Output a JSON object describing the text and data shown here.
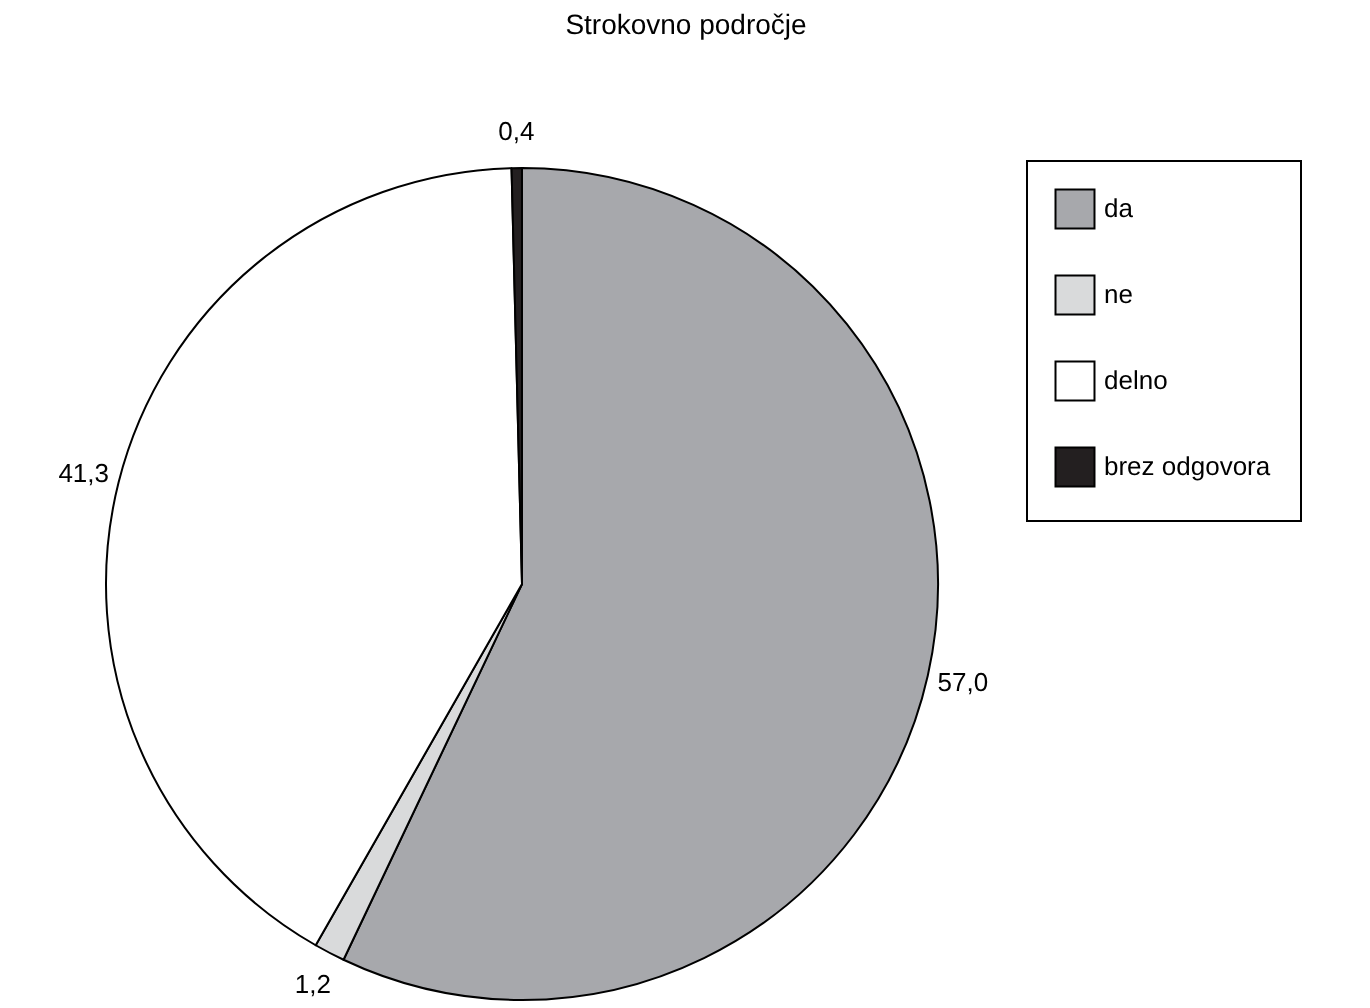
{
  "chart_data": {
    "type": "pie",
    "title": "Strokovno področje",
    "categories": [
      "da",
      "ne",
      "delno",
      "brez odgovora"
    ],
    "values": [
      57.0,
      1.2,
      41.3,
      0.4
    ],
    "value_labels": [
      "57,0",
      "1,2",
      "41,3",
      "0,4"
    ],
    "colors": [
      "#a7a8ac",
      "#d9dadb",
      "#ffffff",
      "#231f20"
    ],
    "legend": "top right"
  }
}
